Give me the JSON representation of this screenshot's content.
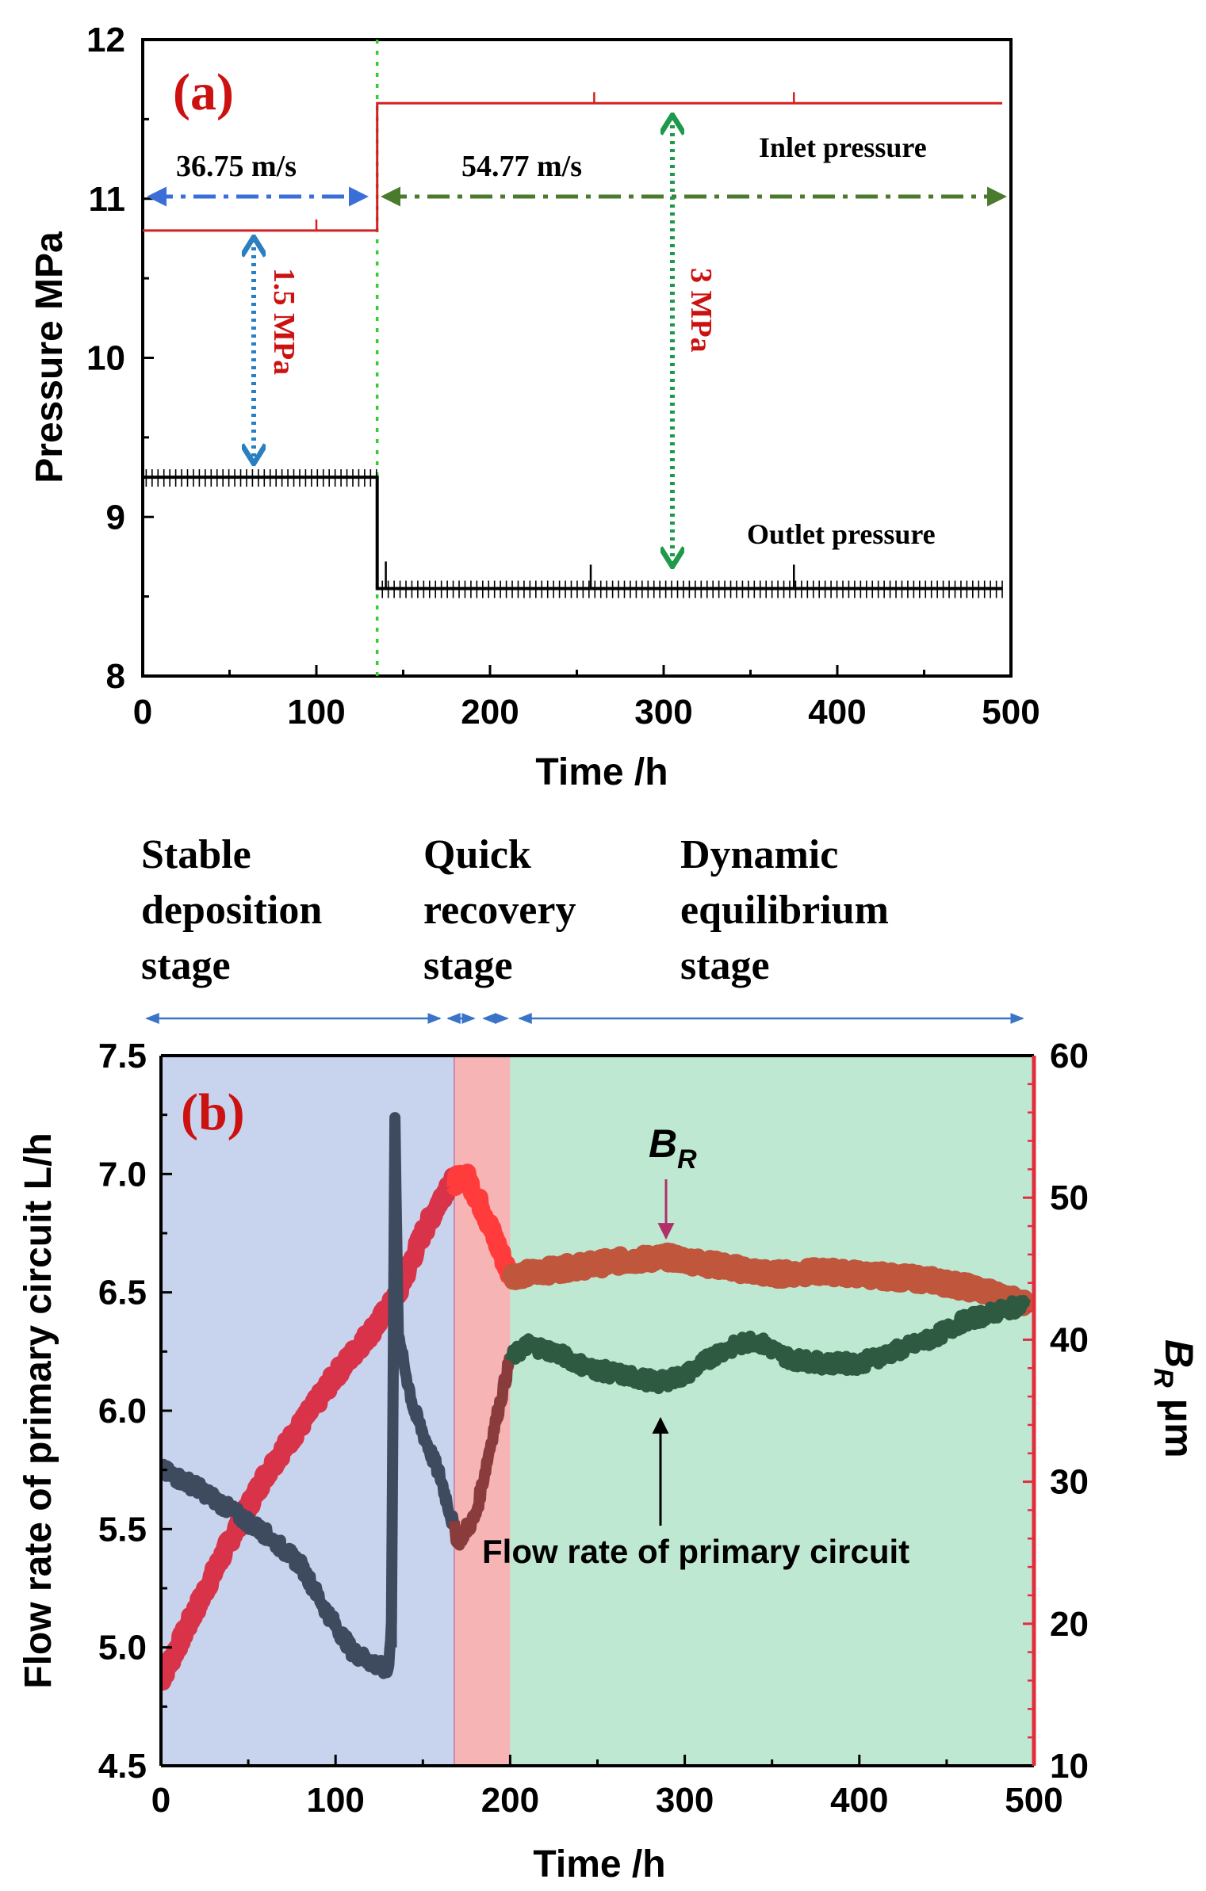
{
  "chart_data": [
    {
      "panel": "a",
      "type": "line",
      "label": "(a)",
      "xlabel": "Time /h",
      "ylabel": "Pressure MPa",
      "xlim": [
        0,
        500
      ],
      "ylim": [
        8,
        12
      ],
      "xticks": [
        0,
        100,
        200,
        300,
        400,
        500
      ],
      "yticks": [
        8,
        9,
        10,
        11,
        12
      ],
      "change_time": 135,
      "series": [
        {
          "name": "Inlet pressure",
          "color": "#d42020",
          "points": [
            [
              0,
              10.8
            ],
            [
              135,
              10.8
            ],
            [
              135,
              11.6
            ],
            [
              495,
              11.6
            ]
          ]
        },
        {
          "name": "Outlet pressure",
          "color": "#000000",
          "points": [
            [
              0,
              9.25
            ],
            [
              135,
              9.25
            ],
            [
              135,
              8.55
            ],
            [
              495,
              8.55
            ]
          ]
        }
      ],
      "annotations": {
        "velocity_before": "36.75 m/s",
        "velocity_after": "54.77 m/s",
        "diff_before": "1.5 MPa",
        "diff_after": "3 MPa",
        "inlet_label": "Inlet pressure",
        "outlet_label": "Outlet pressure"
      },
      "colors": {
        "arrow_blue": "#3a6fd8",
        "arrow_green": "#4a7a2c",
        "arrow_teal": "#1f9a4a",
        "arrow_dotblue": "#2a7fc0",
        "change_line": "#33cc33",
        "label_red": "#cc1111"
      }
    },
    {
      "panel": "b",
      "type": "line",
      "label": "(b)",
      "xlabel": "Time /h",
      "ylabel": "Flow rate of primary circuit  L/h",
      "ylabel_right": "B_R μm",
      "ylabel_right_main": "B",
      "ylabel_right_sub": "R",
      "ylabel_right_unit": " μm",
      "xlim": [
        0,
        500
      ],
      "ylim": [
        4.5,
        7.5
      ],
      "ylim_right": [
        10,
        60
      ],
      "xticks": [
        0,
        100,
        200,
        300,
        400,
        500
      ],
      "yticks": [
        4.5,
        5.0,
        5.5,
        6.0,
        6.5,
        7.0,
        7.5
      ],
      "yticks_right": [
        10,
        20,
        30,
        40,
        50,
        60
      ],
      "stages": [
        {
          "name": "Stable deposition stage",
          "lines": [
            "Stable",
            "deposition",
            "stage"
          ],
          "start": 0,
          "end": 168,
          "color": "#c8d4ee"
        },
        {
          "name": "Quick recovery stage",
          "lines": [
            "Quick",
            "recovery",
            "stage"
          ],
          "start": 168,
          "end": 200,
          "color": "#f7b4b4"
        },
        {
          "name": "Dynamic equilibrium stage",
          "lines": [
            "Dynamic",
            "equilibrium",
            "stage"
          ],
          "start": 200,
          "end": 500,
          "color": "#bfe8d2"
        }
      ],
      "series": [
        {
          "name": "Flow rate of primary circuit",
          "axis": "left",
          "color": "#3e4a5e",
          "points": [
            [
              0,
              5.75
            ],
            [
              20,
              5.68
            ],
            [
              40,
              5.58
            ],
            [
              60,
              5.48
            ],
            [
              80,
              5.35
            ],
            [
              95,
              5.15
            ],
            [
              110,
              4.98
            ],
            [
              125,
              4.92
            ],
            [
              130,
              4.9
            ],
            [
              132,
              5.1
            ],
            [
              134,
              7.22
            ],
            [
              136,
              6.3
            ],
            [
              145,
              6.0
            ],
            [
              160,
              5.72
            ],
            [
              170,
              5.45
            ],
            [
              180,
              5.55
            ],
            [
              190,
              5.9
            ],
            [
              200,
              6.22
            ],
            [
              210,
              6.28
            ],
            [
              225,
              6.25
            ],
            [
              245,
              6.18
            ],
            [
              265,
              6.15
            ],
            [
              285,
              6.12
            ],
            [
              300,
              6.15
            ],
            [
              320,
              6.25
            ],
            [
              340,
              6.3
            ],
            [
              360,
              6.22
            ],
            [
              380,
              6.2
            ],
            [
              400,
              6.2
            ],
            [
              420,
              6.25
            ],
            [
              440,
              6.3
            ],
            [
              460,
              6.38
            ],
            [
              480,
              6.42
            ],
            [
              495,
              6.45
            ]
          ]
        },
        {
          "name": "B_R",
          "axis": "right",
          "color": "#d9334a",
          "points": [
            [
              0,
              16
            ],
            [
              20,
              21
            ],
            [
              40,
              26
            ],
            [
              60,
              30.5
            ],
            [
              80,
              34
            ],
            [
              100,
              37.5
            ],
            [
              120,
              40.5
            ],
            [
              135,
              43
            ],
            [
              150,
              47.5
            ],
            [
              165,
              51
            ],
            [
              175,
              51.5
            ],
            [
              185,
              49
            ],
            [
              200,
              44.5
            ],
            [
              230,
              45
            ],
            [
              260,
              45.5
            ],
            [
              290,
              45.8
            ],
            [
              320,
              45.2
            ],
            [
              350,
              44.6
            ],
            [
              380,
              44.8
            ],
            [
              410,
              44.5
            ],
            [
              440,
              44.2
            ],
            [
              470,
              43.5
            ],
            [
              495,
              42.5
            ]
          ]
        }
      ],
      "annotations": {
        "br_label_main": "B",
        "br_label_sub": "R",
        "flow_label": "Flow rate of primary circuit"
      },
      "colors": {
        "right_axis": "#e22d3d",
        "label_red": "#cc1111",
        "br_label": "#c0392b",
        "stage_arrow": "#3a74c8",
        "br_color_recovery": "#ff3b3b",
        "br_color_dynamic": "#c0563c",
        "flow_color_dynamic": "#2f5a42",
        "flow_color_recovery": "#8a3b3b"
      }
    }
  ]
}
